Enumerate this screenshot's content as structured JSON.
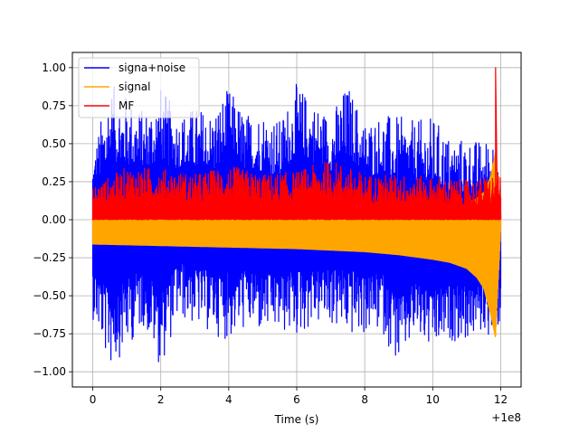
{
  "chart_data": {
    "type": "line",
    "title": "",
    "xlabel": "Time (s)",
    "ylabel": "",
    "x_offset_text": "+1e8",
    "xlim": [
      -0.6,
      12.6
    ],
    "ylim": [
      -1.1,
      1.1
    ],
    "grid": true,
    "legend_position": "upper left",
    "x_ticks": [
      0,
      2,
      4,
      6,
      8,
      10,
      12
    ],
    "x_tick_labels": [
      "0",
      "2",
      "4",
      "6",
      "8",
      "10",
      "12"
    ],
    "y_ticks": [
      -1.0,
      -0.75,
      -0.5,
      -0.25,
      0.0,
      0.25,
      0.5,
      0.75,
      1.0
    ],
    "y_tick_labels": [
      "−1.00",
      "−0.75",
      "−0.50",
      "−0.25",
      "0.00",
      "0.25",
      "0.50",
      "0.75",
      "1.00"
    ],
    "series": [
      {
        "name": "signa+noise",
        "color": "#0000ff",
        "x": [
          0,
          0.5,
          1,
          1.5,
          2,
          2.5,
          3,
          3.5,
          4,
          4.5,
          5,
          5.5,
          6,
          6.5,
          7,
          7.5,
          8,
          8.5,
          9,
          9.5,
          10,
          10.5,
          11,
          11.5,
          11.8,
          12
        ],
        "upper": [
          0.45,
          0.9,
          0.82,
          0.72,
          0.88,
          0.7,
          0.75,
          0.72,
          0.87,
          0.7,
          0.73,
          0.66,
          0.9,
          0.78,
          0.7,
          0.9,
          0.66,
          0.7,
          0.68,
          0.65,
          0.68,
          0.55,
          0.54,
          0.52,
          0.58,
          0.2
        ],
        "lower": [
          -0.65,
          -0.98,
          -0.85,
          -0.7,
          -0.98,
          -0.65,
          -0.7,
          -0.75,
          -0.8,
          -0.72,
          -0.76,
          -0.75,
          -0.78,
          -0.7,
          -0.7,
          -0.78,
          -0.76,
          -0.74,
          -0.97,
          -0.78,
          -0.9,
          -0.8,
          -0.8,
          -0.75,
          -0.78,
          -0.68
        ]
      },
      {
        "name": "signal",
        "color": "#ffa500",
        "x": [
          0,
          1,
          2,
          3,
          4,
          5,
          6,
          7,
          8,
          9,
          10,
          10.5,
          11,
          11.3,
          11.5,
          11.7,
          11.85,
          12
        ],
        "upper": [
          0.02,
          0.02,
          0.02,
          0.02,
          0.02,
          0.02,
          0.02,
          0.02,
          0.03,
          0.03,
          0.05,
          0.07,
          0.1,
          0.14,
          0.18,
          0.28,
          0.45,
          0.05
        ],
        "lower": [
          -0.16,
          -0.165,
          -0.17,
          -0.175,
          -0.18,
          -0.185,
          -0.19,
          -0.2,
          -0.21,
          -0.23,
          -0.26,
          -0.28,
          -0.32,
          -0.38,
          -0.45,
          -0.62,
          -0.78,
          -0.08
        ]
      },
      {
        "name": "MF",
        "color": "#ff0000",
        "x": [
          0,
          1,
          2,
          3,
          4,
          5,
          6,
          7,
          8,
          9,
          10,
          11,
          11.5,
          11.8,
          12
        ],
        "upper": [
          0.22,
          0.35,
          0.34,
          0.3,
          0.36,
          0.3,
          0.32,
          0.4,
          0.3,
          0.3,
          0.28,
          0.26,
          0.28,
          0.3,
          0.28
        ],
        "lower": [
          0.0,
          0.0,
          0.0,
          0.0,
          0.0,
          0.0,
          0.0,
          0.0,
          0.0,
          0.0,
          0.0,
          0.0,
          0.0,
          0.0,
          0.0
        ],
        "peak": {
          "x": 11.85,
          "y": 1.0
        }
      }
    ]
  }
}
